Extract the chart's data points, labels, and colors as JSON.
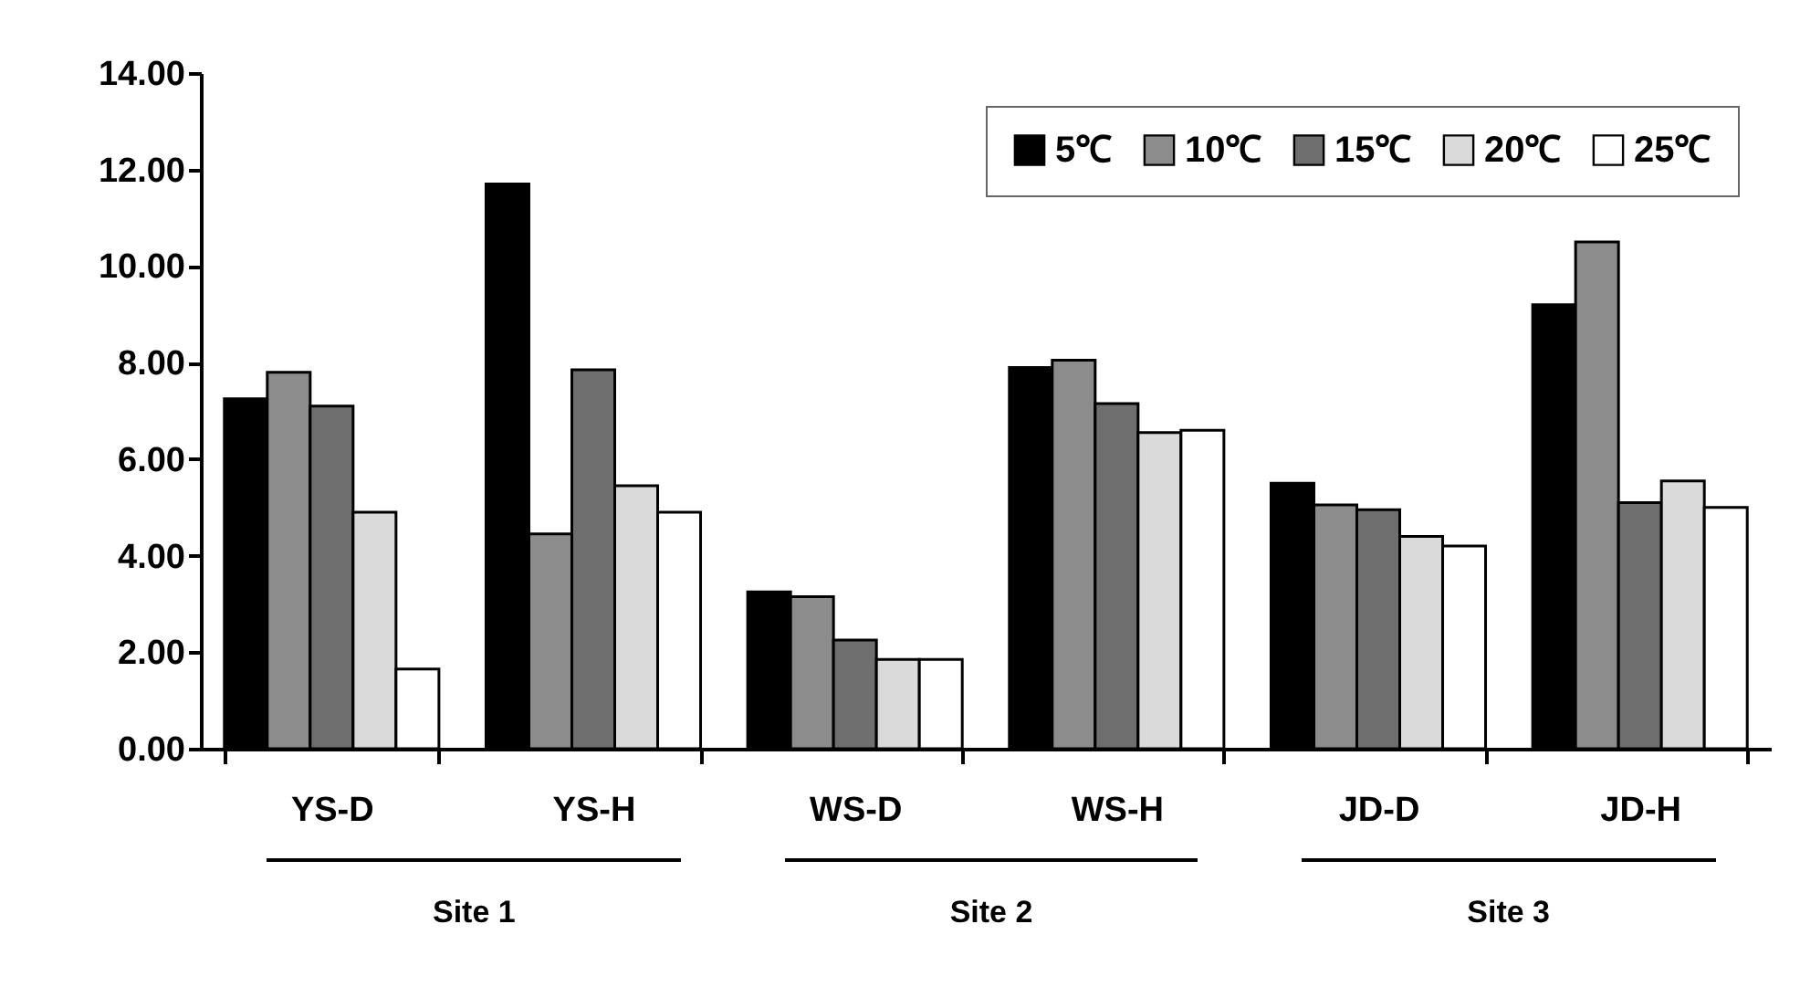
{
  "chart_data": {
    "type": "bar",
    "categories": [
      "YS-D",
      "YS-H",
      "WS-D",
      "WS-H",
      "JD-D",
      "JD-H"
    ],
    "series": [
      {
        "name": "5℃",
        "color": "#000000",
        "values": [
          7.25,
          11.7,
          3.25,
          7.9,
          5.5,
          9.2
        ]
      },
      {
        "name": "10℃",
        "color": "#8c8c8c",
        "values": [
          7.8,
          4.45,
          3.15,
          8.05,
          5.05,
          10.5
        ]
      },
      {
        "name": "15℃",
        "color": "#6e6e6e",
        "values": [
          7.1,
          7.85,
          2.25,
          7.15,
          4.95,
          5.1
        ]
      },
      {
        "name": "20℃",
        "color": "#dadada",
        "values": [
          4.9,
          5.45,
          1.85,
          6.55,
          4.4,
          5.55
        ]
      },
      {
        "name": "25℃",
        "color": "#ffffff",
        "values": [
          1.65,
          4.9,
          1.85,
          6.6,
          4.2,
          5.0
        ]
      }
    ],
    "ylim": [
      0,
      14
    ],
    "yticks": [
      {
        "value": 0,
        "label": "0.00"
      },
      {
        "value": 2,
        "label": "2.00"
      },
      {
        "value": 4,
        "label": "4.00"
      },
      {
        "value": 6,
        "label": "6.00"
      },
      {
        "value": 8,
        "label": "8.00"
      },
      {
        "value": 10,
        "label": "10.00"
      },
      {
        "value": 12,
        "label": "12.00"
      },
      {
        "value": 14,
        "label": "14.00"
      }
    ],
    "legend": "top right",
    "annotations": [
      "Site 1",
      "Site 2",
      "Site 3"
    ]
  }
}
